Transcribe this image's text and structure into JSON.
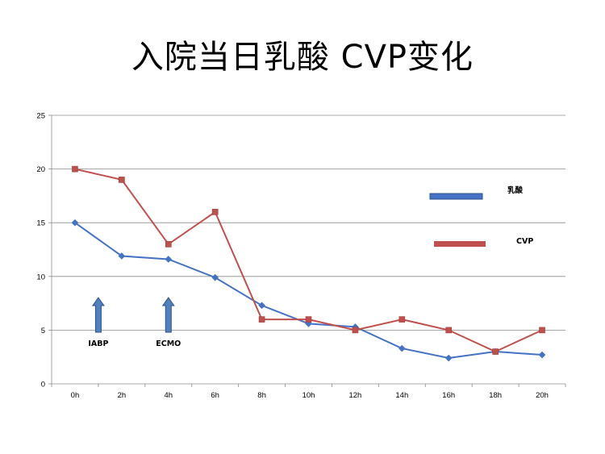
{
  "title": "入院当日乳酸 CVP变化",
  "chart_data": {
    "type": "line",
    "categories": [
      "0h",
      "2h",
      "4h",
      "6h",
      "8h",
      "10h",
      "12h",
      "14h",
      "16h",
      "18h",
      "20h"
    ],
    "series": [
      {
        "name": "乳酸",
        "values": [
          15,
          11.9,
          11.6,
          9.9,
          7.3,
          5.6,
          5.3,
          3.3,
          2.4,
          3.0,
          2.7
        ],
        "color": "#4472C4",
        "marker": "diamond"
      },
      {
        "name": "CVP",
        "values": [
          20,
          19,
          13,
          16,
          6,
          6,
          5,
          6,
          5,
          3,
          5
        ],
        "color": "#C0504D",
        "marker": "square"
      }
    ],
    "ylim": [
      0,
      25
    ],
    "yticks": [
      0,
      5,
      10,
      15,
      20,
      25
    ],
    "grid": true,
    "legend_position": "right",
    "annotations": [
      {
        "text": "IABP",
        "x": 1,
        "arrow": "up-arrow"
      },
      {
        "text": "ECMO",
        "x": 4,
        "arrow": "up-arrow"
      }
    ]
  }
}
